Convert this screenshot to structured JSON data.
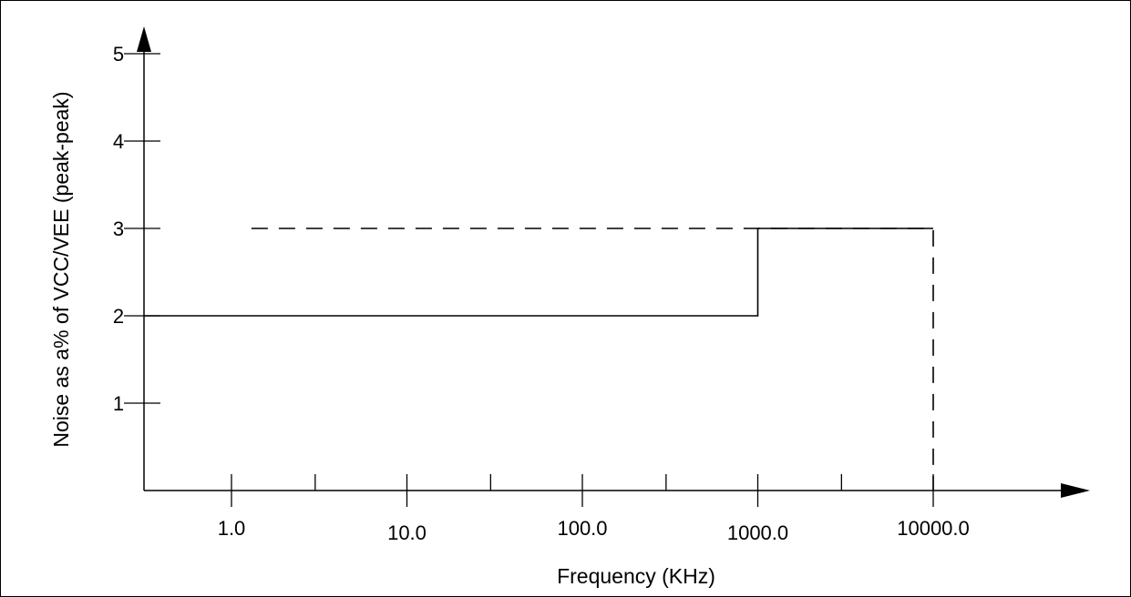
{
  "chart_data": {
    "type": "line",
    "xlabel": "Frequency (KHz)",
    "ylabel": "Noise as a% of VCC/VEE (peak-peak)",
    "x_scale": "log",
    "xlim": [
      0.3,
      50000
    ],
    "ylim": [
      0,
      5.4
    ],
    "x_tick_labels": [
      "1.0",
      "10.0",
      "100.0",
      "1000.0",
      "10000.0"
    ],
    "x_tick_values": [
      1,
      10,
      100,
      1000,
      10000
    ],
    "x_minor_ticks": [
      3,
      30,
      300,
      3000
    ],
    "y_tick_labels": [
      "1",
      "2",
      "3",
      "4",
      "5"
    ],
    "y_tick_values": [
      1,
      2,
      3,
      4,
      5
    ],
    "grid": false,
    "series": [
      {
        "style": "solid",
        "color": "#000000",
        "x": [
          0.3,
          1000,
          1000,
          10000
        ],
        "y": [
          2,
          2,
          3,
          3
        ]
      },
      {
        "style": "dashed",
        "color": "#000000",
        "x": [
          1.3,
          10000,
          10000
        ],
        "y": [
          3,
          3,
          0
        ]
      }
    ]
  }
}
